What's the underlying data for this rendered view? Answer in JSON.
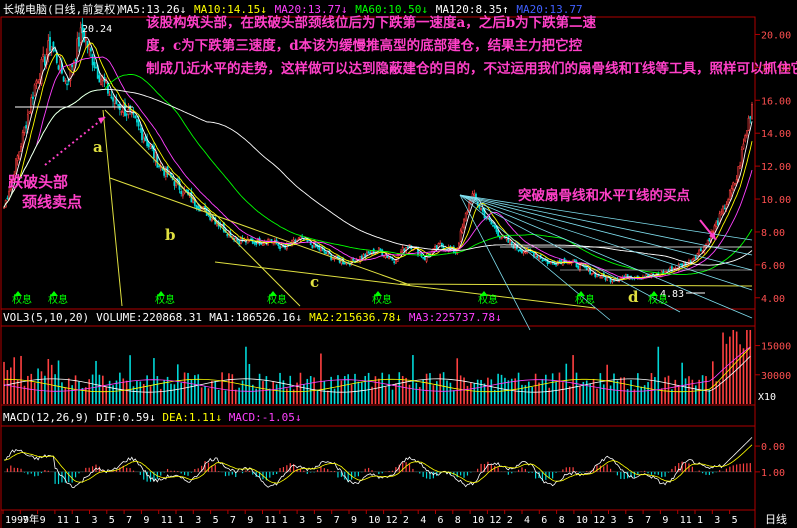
{
  "colors": {
    "background": "#000000",
    "border": "#b00000",
    "up": "#ff4040",
    "down": "#00d8d8",
    "ma5": "#ffffff",
    "ma10": "#ffff00",
    "ma20": "#ff40ff",
    "ma60": "#00ff00",
    "ma120": "#ffffff",
    "annotation": "#ff40c8",
    "yellow_line": "#e0e040",
    "fan_line": "#80e0f0"
  },
  "price_panel": {
    "stock_name": "长城电脑(日线,前复权)",
    "ma_labels": [
      {
        "text": "MA5:13.26",
        "arrow": "↓",
        "color": "#ffffff"
      },
      {
        "text": "MA10:14.15",
        "arrow": "↓",
        "color": "#ffff00"
      },
      {
        "text": "MA20:13.77",
        "arrow": "↓",
        "color": "#ff40ff"
      },
      {
        "text": "MA60:10.50",
        "arrow": "↓",
        "color": "#00ff00"
      },
      {
        "text": "MA120:8.35",
        "arrow": "↑",
        "color": "#ffffff"
      },
      {
        "text": "MA20:13.77",
        "arrow": "",
        "color": "#4060ff"
      }
    ],
    "peak_label": "20.24",
    "low_label": "4.83",
    "y_ticks": [
      "20.00",
      "18.00",
      "16.00",
      "14.00",
      "12.00",
      "10.00",
      "8.00",
      "6.00",
      "4.00"
    ],
    "main_annotation": "该股构筑头部，在跌破头部颈线位后为下跌第一速度a，之后b为下跌第二速度，c为下跌第三速度，d本该为缓慢推高型的底部建仓，结果主力把它控制成几近水平的走势，这样做可以达到隐蔽建仓的目的，不过运用我们的扇骨线和T线等工具，照样可以抓住它的临界点买入！",
    "left_annotation": "跌破头部颈线卖点",
    "right_annotation": "突破扇骨线和水平T线的买点",
    "letters": [
      "a",
      "b",
      "c",
      "d"
    ],
    "quan_xi": "权息"
  },
  "volume_panel": {
    "header": "VOL3(5,10,20)",
    "volume": "VOLUME:220868.31",
    "ma1": "MA1:186526.16",
    "ma2": "MA2:215636.78",
    "ma3": "MA3:225737.78",
    "y_ticks": [
      "30000",
      "15000"
    ],
    "unit": "X10"
  },
  "macd_panel": {
    "header": "MACD(12,26,9)",
    "dif": "DIF:0.59",
    "dea": "DEA:1.11",
    "macd": "MACD:-1.05",
    "y_ticks": [
      "1.00",
      "0.00"
    ]
  },
  "time_axis": {
    "labels": [
      "1999年",
      "7",
      "9",
      "11",
      "1",
      "3",
      "5",
      "7",
      "9",
      "11",
      "1",
      "3",
      "5",
      "7",
      "9",
      "11",
      "1",
      "3",
      "5",
      "7",
      "9",
      "10",
      "12",
      "2",
      "4",
      "6",
      "8",
      "10",
      "12",
      "2",
      "4",
      "6",
      "8",
      "10",
      "12",
      "3",
      "5",
      "7",
      "9",
      "11",
      "1",
      "3",
      "5"
    ],
    "period": "日线"
  },
  "chart_data": {
    "type": "candlestick",
    "period": "daily",
    "ylim": [
      3.5,
      21
    ],
    "series": [
      {
        "name": "close",
        "values": [
          9.5,
          13.0,
          17.0,
          19.5,
          17.0,
          20.2,
          17.8,
          16.0,
          15.2,
          13.8,
          12.0,
          11.0,
          10.0,
          9.2,
          8.3,
          7.5,
          7.4,
          7.5,
          7.0,
          7.6,
          7.1,
          6.5,
          6.1,
          6.5,
          6.9,
          6.3,
          7.3,
          6.4,
          7.2,
          6.8,
          10.3,
          8.8,
          7.6,
          7.0,
          6.7,
          6.1,
          6.3,
          5.9,
          5.4,
          5.1,
          5.3,
          5.3,
          5.4,
          5.8,
          6.2,
          7.2,
          9.0,
          11.2,
          15.8
        ]
      }
    ],
    "volume": {
      "ylim": [
        0,
        38000
      ],
      "ticks": [
        15000,
        30000
      ]
    },
    "macd": {
      "ylim": [
        -1.4,
        1.7
      ],
      "ticks": [
        0,
        1
      ]
    }
  }
}
